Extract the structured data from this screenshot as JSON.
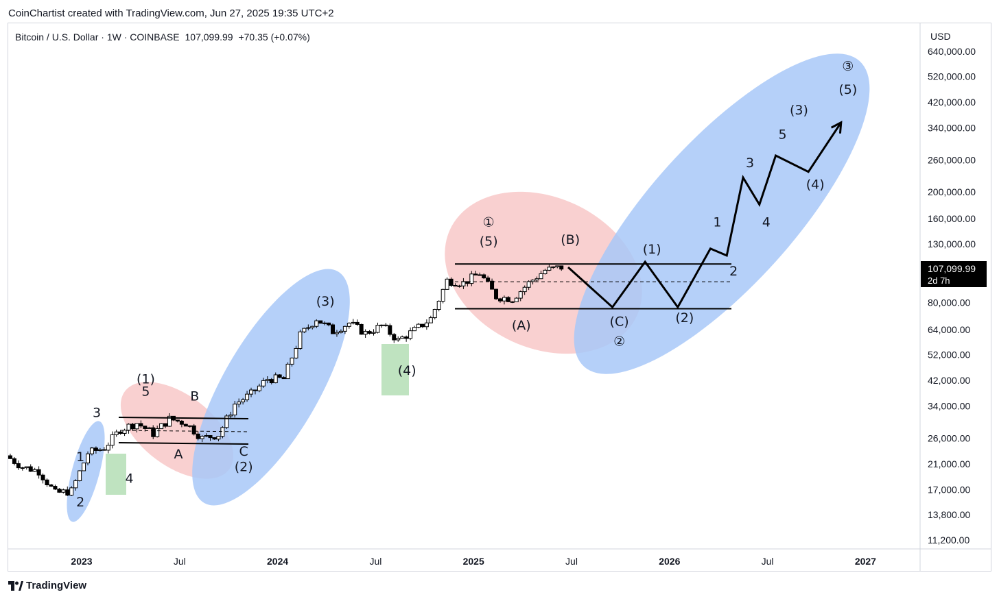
{
  "header": {
    "attribution": "CoinChartist created with TradingView.com, Jun 27, 2025 19:35 UTC+2"
  },
  "legend": {
    "symbol": "Bitcoin / U.S. Dollar · 1W · COINBASE",
    "price": "107,099.99",
    "change": "+70.35 (+0.07%)"
  },
  "price_scale": {
    "currency": "USD",
    "current_price": "107,099.99",
    "countdown": "2d 7h",
    "tick_labels": [
      "640,000.00",
      "520,000.00",
      "420,000.00",
      "340,000.00",
      "260,000.00",
      "200,000.00",
      "160,000.00",
      "130,000.00",
      "80,000.00",
      "64,000.00",
      "52,000.00",
      "42,000.00",
      "34,000.00",
      "26,000.00",
      "21,000.00",
      "17,000.00",
      "13,800.00",
      "11,200.00"
    ]
  },
  "time_scale": {
    "labels": [
      "2023",
      "Jul",
      "2024",
      "Jul",
      "2025",
      "Jul",
      "2026",
      "Jul",
      "2027"
    ]
  },
  "footer": {
    "brand": "TradingView"
  },
  "chart_data": {
    "type": "candlestick",
    "title": "Bitcoin / U.S. Dollar · 1W · COINBASE",
    "y_scale": "log",
    "ylim": [
      10000,
      700000
    ],
    "xlim": [
      "2022-08",
      "2027-05"
    ],
    "current_price": 107099.99,
    "price_path": [
      [
        "2022-08",
        22500
      ],
      [
        "2022-09",
        20500
      ],
      [
        "2022-10",
        19800
      ],
      [
        "2022-11",
        16500
      ],
      [
        "2022-12",
        16800
      ],
      [
        "2023-01",
        23000
      ],
      [
        "2023-02",
        24000
      ],
      [
        "2023-03",
        28000
      ],
      [
        "2023-04",
        29500
      ],
      [
        "2023-05",
        27000
      ],
      [
        "2023-06",
        30500
      ],
      [
        "2023-07",
        29500
      ],
      [
        "2023-08",
        26000
      ],
      [
        "2023-09",
        26800
      ],
      [
        "2023-10",
        34500
      ],
      [
        "2023-11",
        37500
      ],
      [
        "2023-12",
        42500
      ],
      [
        "2024-01",
        42500
      ],
      [
        "2024-02",
        61000
      ],
      [
        "2024-03",
        70000
      ],
      [
        "2024-04",
        63000
      ],
      [
        "2024-05",
        67500
      ],
      [
        "2024-06",
        62000
      ],
      [
        "2024-07",
        66000
      ],
      [
        "2024-08",
        58500
      ],
      [
        "2024-09",
        63500
      ],
      [
        "2024-10",
        70000
      ],
      [
        "2024-11",
        96000
      ],
      [
        "2024-12",
        94000
      ],
      [
        "2025-01",
        102000
      ],
      [
        "2025-02",
        84000
      ],
      [
        "2025-03",
        82500
      ],
      [
        "2025-04",
        94000
      ],
      [
        "2025-05",
        104500
      ],
      [
        "2025-06",
        107100
      ]
    ],
    "projection_path": [
      [
        "2025-06",
        107100
      ],
      [
        "2025-09",
        77000
      ],
      [
        "2025-11",
        112000
      ],
      [
        "2026-01",
        77000
      ],
      [
        "2026-03",
        125000
      ],
      [
        "2026-04",
        118000
      ],
      [
        "2026-05",
        225000
      ],
      [
        "2026-06",
        180000
      ],
      [
        "2026-07",
        270000
      ],
      [
        "2026-09",
        236000
      ],
      [
        "2026-11",
        355000
      ]
    ],
    "horizontal_levels": [
      110000,
      76000
    ],
    "dashed_level": 95000,
    "wave_labels": [
      {
        "text": "1",
        "x": "2022-12",
        "y": 21500
      },
      {
        "text": "2",
        "x": "2022-12",
        "y": 14800
      },
      {
        "text": "3",
        "x": "2023-01",
        "y": 31000
      },
      {
        "text": "4",
        "x": "2023-03",
        "y": 18000
      },
      {
        "text": "(1)",
        "x": "2023-04",
        "y": 41000
      },
      {
        "text": "5",
        "x": "2023-04",
        "y": 37000
      },
      {
        "text": "B",
        "x": "2023-07",
        "y": 35500
      },
      {
        "text": "A",
        "x": "2023-06",
        "y": 22000
      },
      {
        "text": "C",
        "x": "2023-10",
        "y": 22500
      },
      {
        "text": "(2)",
        "x": "2023-10",
        "y": 19800
      },
      {
        "text": "(3)",
        "x": "2024-03",
        "y": 78000
      },
      {
        "text": "(4)",
        "x": "2024-08",
        "y": 44000
      },
      {
        "text": "①",
        "x": "2025-01",
        "y": 150000
      },
      {
        "text": "(5)",
        "x": "2025-01",
        "y": 128000
      },
      {
        "text": "(B)",
        "x": "2025-06",
        "y": 130000
      },
      {
        "text": "(A)",
        "x": "2025-03",
        "y": 64000
      },
      {
        "text": "(C)",
        "x": "2025-09",
        "y": 66000
      },
      {
        "text": "②",
        "x": "2025-09",
        "y": 56000
      },
      {
        "text": "(1)",
        "x": "2025-11",
        "y": 120000
      },
      {
        "text": "(2)",
        "x": "2026-01",
        "y": 68000
      },
      {
        "text": "1",
        "x": "2026-03",
        "y": 150000
      },
      {
        "text": "2",
        "x": "2026-04",
        "y": 100000
      },
      {
        "text": "3",
        "x": "2026-05",
        "y": 245000
      },
      {
        "text": "4",
        "x": "2026-06",
        "y": 150000
      },
      {
        "text": "5",
        "x": "2026-07",
        "y": 310000
      },
      {
        "text": "(4)",
        "x": "2026-09",
        "y": 205000
      },
      {
        "text": "(3)",
        "x": "2026-08",
        "y": 380000
      },
      {
        "text": "(5)",
        "x": "2026-11",
        "y": 450000
      },
      {
        "text": "③",
        "x": "2026-11",
        "y": 545000
      }
    ],
    "zones": [
      {
        "shape": "ellipse",
        "color": "#a8c8f8",
        "role": "impulse"
      },
      {
        "shape": "ellipse",
        "color": "#f8c8c8",
        "role": "correction"
      },
      {
        "shape": "rectangle",
        "color": "#bfe3c0",
        "role": "wave 4"
      }
    ],
    "colors": {
      "up": "#ffffff",
      "down": "#000000",
      "impulse_zone": "#a8c8f8",
      "correction_zone": "#f8c8c8",
      "wave4_zone": "#bfe3c0",
      "price_tag": "#000000"
    }
  }
}
